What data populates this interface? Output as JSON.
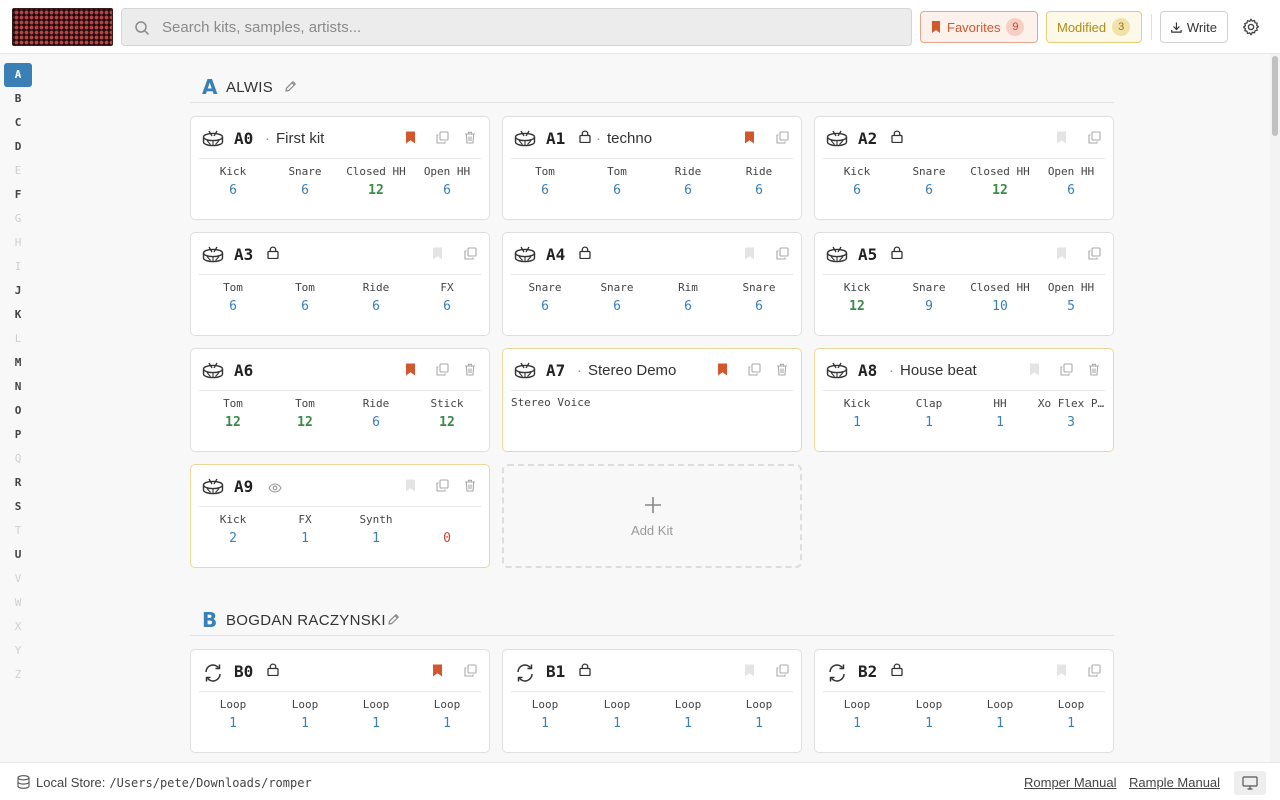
{
  "header": {
    "search_placeholder": "Search kits, samples, artists...",
    "favorites": {
      "label": "Favorites",
      "count": "9"
    },
    "modified": {
      "label": "Modified",
      "count": "3"
    },
    "write_label": "Write"
  },
  "alphabet": [
    {
      "l": "A",
      "state": "active"
    },
    {
      "l": "B",
      "state": "on"
    },
    {
      "l": "C",
      "state": "on"
    },
    {
      "l": "D",
      "state": "on"
    },
    {
      "l": "E",
      "state": "dim"
    },
    {
      "l": "F",
      "state": "on"
    },
    {
      "l": "G",
      "state": "dim"
    },
    {
      "l": "H",
      "state": "dim"
    },
    {
      "l": "I",
      "state": "dim"
    },
    {
      "l": "J",
      "state": "on"
    },
    {
      "l": "K",
      "state": "on"
    },
    {
      "l": "L",
      "state": "dim"
    },
    {
      "l": "M",
      "state": "on"
    },
    {
      "l": "N",
      "state": "on"
    },
    {
      "l": "O",
      "state": "on"
    },
    {
      "l": "P",
      "state": "on"
    },
    {
      "l": "Q",
      "state": "dim"
    },
    {
      "l": "R",
      "state": "on"
    },
    {
      "l": "S",
      "state": "on"
    },
    {
      "l": "T",
      "state": "dim"
    },
    {
      "l": "U",
      "state": "on"
    },
    {
      "l": "V",
      "state": "dim"
    },
    {
      "l": "W",
      "state": "dim"
    },
    {
      "l": "X",
      "state": "dim"
    },
    {
      "l": "Y",
      "state": "dim"
    },
    {
      "l": "Z",
      "state": "dim"
    }
  ],
  "sections": [
    {
      "letter": "A",
      "name": "ALWIS"
    },
    {
      "letter": "B",
      "name": "BOGDAN RACZYNSKI"
    }
  ],
  "kits": [
    {
      "id": "A0",
      "name": "First kit",
      "locked": false,
      "bookmarked": true,
      "trash": true,
      "modified": false,
      "icon": "drum",
      "voices": [
        {
          "label": "Kick",
          "count": "6",
          "c": "blue"
        },
        {
          "label": "Snare",
          "count": "6",
          "c": "blue"
        },
        {
          "label": "Closed HH",
          "count": "12",
          "c": "green"
        },
        {
          "label": "Open HH",
          "count": "6",
          "c": "blue"
        }
      ]
    },
    {
      "id": "A1",
      "name": "techno",
      "locked": true,
      "bookmarked": true,
      "trash": false,
      "modified": false,
      "icon": "drum",
      "voices": [
        {
          "label": "Tom",
          "count": "6",
          "c": "blue"
        },
        {
          "label": "Tom",
          "count": "6",
          "c": "blue"
        },
        {
          "label": "Ride",
          "count": "6",
          "c": "blue"
        },
        {
          "label": "Ride",
          "count": "6",
          "c": "blue"
        }
      ]
    },
    {
      "id": "A2",
      "name": "",
      "locked": true,
      "bookmarked": false,
      "trash": false,
      "modified": false,
      "icon": "drum",
      "voices": [
        {
          "label": "Kick",
          "count": "6",
          "c": "blue"
        },
        {
          "label": "Snare",
          "count": "6",
          "c": "blue"
        },
        {
          "label": "Closed HH",
          "count": "12",
          "c": "green"
        },
        {
          "label": "Open HH",
          "count": "6",
          "c": "blue"
        }
      ]
    },
    {
      "id": "A3",
      "name": "",
      "locked": true,
      "bookmarked": false,
      "trash": false,
      "modified": false,
      "icon": "drum",
      "voices": [
        {
          "label": "Tom",
          "count": "6",
          "c": "blue"
        },
        {
          "label": "Tom",
          "count": "6",
          "c": "blue"
        },
        {
          "label": "Ride",
          "count": "6",
          "c": "blue"
        },
        {
          "label": "FX",
          "count": "6",
          "c": "blue"
        }
      ]
    },
    {
      "id": "A4",
      "name": "",
      "locked": true,
      "bookmarked": false,
      "trash": false,
      "modified": false,
      "icon": "drum",
      "voices": [
        {
          "label": "Snare",
          "count": "6",
          "c": "blue"
        },
        {
          "label": "Snare",
          "count": "6",
          "c": "blue"
        },
        {
          "label": "Rim",
          "count": "6",
          "c": "blue"
        },
        {
          "label": "Snare",
          "count": "6",
          "c": "blue"
        }
      ]
    },
    {
      "id": "A5",
      "name": "",
      "locked": true,
      "bookmarked": false,
      "trash": false,
      "modified": false,
      "icon": "drum",
      "voices": [
        {
          "label": "Kick",
          "count": "12",
          "c": "green"
        },
        {
          "label": "Snare",
          "count": "9",
          "c": "blue"
        },
        {
          "label": "Closed HH",
          "count": "10",
          "c": "blue"
        },
        {
          "label": "Open HH",
          "count": "5",
          "c": "blue"
        }
      ]
    },
    {
      "id": "A6",
      "name": "",
      "locked": false,
      "bookmarked": true,
      "trash": true,
      "modified": false,
      "icon": "drum",
      "voices": [
        {
          "label": "Tom",
          "count": "12",
          "c": "green"
        },
        {
          "label": "Tom",
          "count": "12",
          "c": "green"
        },
        {
          "label": "Ride",
          "count": "6",
          "c": "blue"
        },
        {
          "label": "Stick",
          "count": "12",
          "c": "green"
        }
      ]
    },
    {
      "id": "A7",
      "name": "Stereo Demo",
      "locked": false,
      "bookmarked": true,
      "trash": true,
      "modified": true,
      "icon": "drum",
      "stereo_label": "Stereo Voice",
      "voices": []
    },
    {
      "id": "A8",
      "name": "House beat",
      "locked": false,
      "bookmarked": false,
      "trash": true,
      "modified": true,
      "icon": "drum",
      "voices": [
        {
          "label": "Kick",
          "count": "1",
          "c": "blue"
        },
        {
          "label": "Clap",
          "count": "1",
          "c": "blue"
        },
        {
          "label": "HH",
          "count": "1",
          "c": "blue"
        },
        {
          "label": "Xo Flex P…",
          "count": "3",
          "c": "blue"
        }
      ]
    },
    {
      "id": "A9",
      "name": "",
      "locked": false,
      "eye": true,
      "bookmarked": false,
      "trash": true,
      "modified": true,
      "icon": "drum",
      "voices": [
        {
          "label": "Kick",
          "count": "2",
          "c": "blue"
        },
        {
          "label": "FX",
          "count": "1",
          "c": "blue"
        },
        {
          "label": "Synth",
          "count": "1",
          "c": "blue"
        },
        {
          "label": "",
          "count": "0",
          "c": "red"
        }
      ]
    },
    {
      "id": "B0",
      "name": "",
      "locked": true,
      "bookmarked": true,
      "trash": false,
      "modified": false,
      "icon": "loop",
      "voices": [
        {
          "label": "Loop",
          "count": "1",
          "c": "blue"
        },
        {
          "label": "Loop",
          "count": "1",
          "c": "blue"
        },
        {
          "label": "Loop",
          "count": "1",
          "c": "blue"
        },
        {
          "label": "Loop",
          "count": "1",
          "c": "blue"
        }
      ]
    },
    {
      "id": "B1",
      "name": "",
      "locked": true,
      "bookmarked": false,
      "trash": false,
      "modified": false,
      "icon": "loop",
      "voices": [
        {
          "label": "Loop",
          "count": "1",
          "c": "blue"
        },
        {
          "label": "Loop",
          "count": "1",
          "c": "blue"
        },
        {
          "label": "Loop",
          "count": "1",
          "c": "blue"
        },
        {
          "label": "Loop",
          "count": "1",
          "c": "blue"
        }
      ]
    },
    {
      "id": "B2",
      "name": "",
      "locked": true,
      "bookmarked": false,
      "trash": false,
      "modified": false,
      "icon": "loop",
      "voices": [
        {
          "label": "Loop",
          "count": "1",
          "c": "blue"
        },
        {
          "label": "Loop",
          "count": "1",
          "c": "blue"
        },
        {
          "label": "Loop",
          "count": "1",
          "c": "blue"
        },
        {
          "label": "Loop",
          "count": "1",
          "c": "blue"
        }
      ]
    }
  ],
  "add_kit_label": "Add Kit",
  "footer": {
    "store_label": "Local Store:",
    "store_path": "/Users/pete/Downloads/romper",
    "link1": "Romper Manual",
    "link2": "Rample Manual"
  },
  "colors": {
    "accent": "#3a7fb5",
    "favorite": "#d2572d",
    "modified": "#b28a13",
    "green": "#3a8a4a",
    "red": "#c24a3a"
  }
}
